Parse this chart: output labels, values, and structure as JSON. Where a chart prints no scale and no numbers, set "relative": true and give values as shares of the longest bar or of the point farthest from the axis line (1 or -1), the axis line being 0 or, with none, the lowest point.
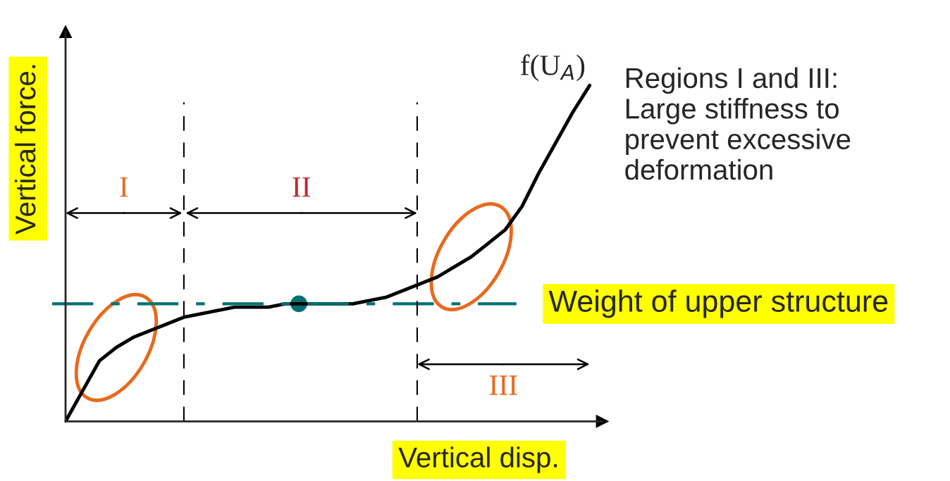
{
  "chart_data": {
    "type": "line",
    "relative": true,
    "xlabel": "Vertical disp.",
    "ylabel": "Vertical force.",
    "categories": [
      null,
      null,
      null,
      null,
      null,
      null,
      null,
      null,
      null,
      null,
      null,
      null,
      null,
      null,
      null,
      null,
      null,
      null,
      null,
      null,
      null,
      null,
      null,
      null,
      null,
      null,
      null,
      null,
      null,
      null,
      null,
      null
    ],
    "series": [
      {
        "name": "f(U$_{A}$)",
        "color": "#000000",
        "values": [
          0,
          0.09,
          0.18,
          0.22,
          0.25,
          0.27,
          0.29,
          0.31,
          0.32,
          0.33,
          0.34,
          0.34,
          0.34,
          0.35,
          0.35,
          0.35,
          0.35,
          0.35,
          0.36,
          0.37,
          0.39,
          0.41,
          0.43,
          0.46,
          0.49,
          0.53,
          0.57,
          0.64,
          0.74,
          0.83,
          0.92,
          1
        ]
      }
    ],
    "ref_lines": [
      {
        "axis": "y",
        "value": 0.35,
        "label": "Weight of upper structure",
        "color": "#007070",
        "line_style": "dashdot"
      }
    ],
    "annotations": [
      "Regions I and III:\nLarge stiffness to\nprevent excessive\ndeformation",
      "I",
      "II",
      "III"
    ],
    "line_style": "solid"
  }
}
